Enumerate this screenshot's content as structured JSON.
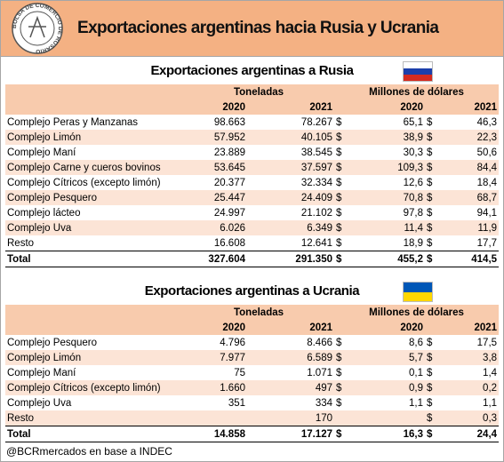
{
  "header": {
    "title": "Exportaciones argentinas hacia Rusia y Ucrania",
    "logo_text": "BOLSA DE COMERCIO DE ROSARIO"
  },
  "currency": "$",
  "tables": [
    {
      "title": "Exportaciones argentinas a Rusia",
      "columns": {
        "tons": "Toneladas",
        "usd": "Millones de dólares",
        "years": [
          "2020",
          "2021"
        ]
      },
      "rows": [
        [
          "Complejo Peras y Manzanas",
          "98.663",
          "78.267",
          "65,1",
          "46,3"
        ],
        [
          "Complejo Limón",
          "57.952",
          "40.105",
          "38,9",
          "22,3"
        ],
        [
          "Complejo Maní",
          "23.889",
          "38.545",
          "30,3",
          "50,6"
        ],
        [
          "Complejo Carne y cueros bovinos",
          "53.645",
          "37.597",
          "109,3",
          "84,4"
        ],
        [
          "Complejo Cítricos (excepto limón)",
          "20.377",
          "32.334",
          "12,6",
          "18,4"
        ],
        [
          "Complejo Pesquero",
          "25.447",
          "24.409",
          "70,8",
          "68,7"
        ],
        [
          "Complejo lácteo",
          "24.997",
          "21.102",
          "97,8",
          "94,1"
        ],
        [
          "Complejo Uva",
          "6.026",
          "6.349",
          "11,4",
          "11,9"
        ],
        [
          "Resto",
          "16.608",
          "12.641",
          "18,9",
          "17,7"
        ]
      ],
      "total": [
        "Total",
        "327.604",
        "291.350",
        "455,2",
        "414,5"
      ]
    },
    {
      "title": "Exportaciones argentinas a Ucrania",
      "columns": {
        "tons": "Toneladas",
        "usd": "Millones de dólares",
        "years": [
          "2020",
          "2021"
        ]
      },
      "rows": [
        [
          "Complejo Pesquero",
          "4.796",
          "8.466",
          "8,6",
          "17,5"
        ],
        [
          "Complejo Limón",
          "7.977",
          "6.589",
          "5,7",
          "3,8"
        ],
        [
          "Complejo Maní",
          "75",
          "1.071",
          "0,1",
          "1,4"
        ],
        [
          "Complejo Cítricos (excepto limón)",
          "1.660",
          "497",
          "0,9",
          "0,2"
        ],
        [
          "Complejo Uva",
          "351",
          "334",
          "1,1",
          "1,1"
        ],
        [
          "Resto",
          null,
          "170",
          null,
          "0,3"
        ]
      ],
      "total": [
        "Total",
        "14.858",
        "17.127",
        "16,3",
        "24,4"
      ]
    }
  ],
  "footer": "@BCRmercados en base a INDEC"
}
